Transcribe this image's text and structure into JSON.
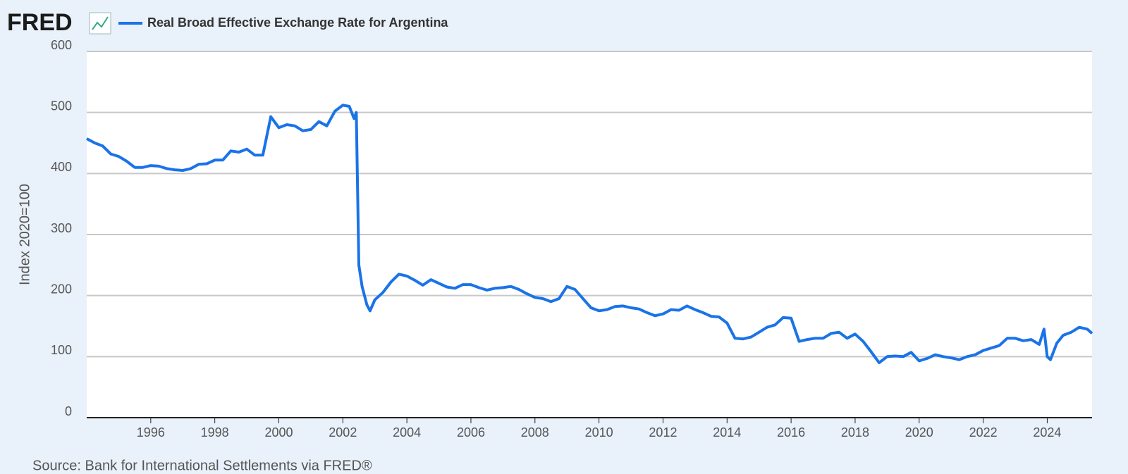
{
  "brand": "FRED",
  "source": "Source: Bank for International Settlements via FRED®",
  "chart_data": {
    "type": "line",
    "y_label": "Index 2020=100",
    "xlim": [
      1994,
      2025.4
    ],
    "xticks": [
      1996,
      1998,
      2000,
      2002,
      2004,
      2006,
      2008,
      2010,
      2012,
      2014,
      2016,
      2018,
      2020,
      2022,
      2024
    ],
    "ylim": [
      0,
      600
    ],
    "yticks": [
      0,
      100,
      200,
      300,
      400,
      500,
      600
    ],
    "grid": true,
    "x": [
      1994.0,
      1994.25,
      1994.5,
      1994.75,
      1995.0,
      1995.25,
      1995.5,
      1995.75,
      1996.0,
      1996.25,
      1996.5,
      1996.75,
      1997.0,
      1997.25,
      1997.5,
      1997.75,
      1998.0,
      1998.25,
      1998.5,
      1998.75,
      1999.0,
      1999.25,
      1999.5,
      1999.75,
      2000.0,
      2000.25,
      2000.5,
      2000.75,
      2001.0,
      2001.25,
      2001.5,
      2001.75,
      2002.0,
      2002.2,
      2002.35,
      2002.42,
      2002.5,
      2002.6,
      2002.75,
      2002.85,
      2003.0,
      2003.25,
      2003.5,
      2003.75,
      2004.0,
      2004.25,
      2004.5,
      2004.75,
      2005.0,
      2005.25,
      2005.5,
      2005.75,
      2006.0,
      2006.25,
      2006.5,
      2006.75,
      2007.0,
      2007.25,
      2007.5,
      2007.75,
      2008.0,
      2008.25,
      2008.5,
      2008.75,
      2009.0,
      2009.25,
      2009.5,
      2009.75,
      2010.0,
      2010.25,
      2010.5,
      2010.75,
      2011.0,
      2011.25,
      2011.5,
      2011.75,
      2012.0,
      2012.25,
      2012.5,
      2012.75,
      2013.0,
      2013.25,
      2013.5,
      2013.75,
      2014.0,
      2014.25,
      2014.5,
      2014.75,
      2015.0,
      2015.25,
      2015.5,
      2015.75,
      2016.0,
      2016.25,
      2016.5,
      2016.75,
      2017.0,
      2017.25,
      2017.5,
      2017.75,
      2018.0,
      2018.25,
      2018.5,
      2018.75,
      2019.0,
      2019.25,
      2019.5,
      2019.75,
      2020.0,
      2020.25,
      2020.5,
      2020.75,
      2021.0,
      2021.25,
      2021.5,
      2021.75,
      2022.0,
      2022.25,
      2022.5,
      2022.75,
      2023.0,
      2023.25,
      2023.5,
      2023.75,
      2023.9,
      2024.0,
      2024.1,
      2024.3,
      2024.5,
      2024.75,
      2025.0,
      2025.25,
      2025.4
    ],
    "series": [
      {
        "name": "Real Broad Effective Exchange Rate for Argentina",
        "color": "#1a73e8",
        "values": [
          457,
          450,
          445,
          432,
          428,
          420,
          410,
          410,
          413,
          412,
          408,
          406,
          405,
          408,
          415,
          416,
          422,
          422,
          437,
          435,
          440,
          430,
          430,
          493,
          475,
          480,
          478,
          470,
          472,
          485,
          478,
          502,
          512,
          510,
          490,
          500,
          250,
          215,
          185,
          175,
          193,
          205,
          222,
          235,
          232,
          225,
          217,
          226,
          220,
          214,
          212,
          218,
          218,
          213,
          209,
          212,
          213,
          215,
          210,
          203,
          197,
          195,
          190,
          195,
          215,
          210,
          195,
          180,
          175,
          177,
          182,
          183,
          180,
          178,
          172,
          167,
          170,
          177,
          176,
          183,
          177,
          172,
          166,
          165,
          155,
          130,
          129,
          132,
          140,
          148,
          152,
          164,
          163,
          125,
          128,
          130,
          130,
          138,
          140,
          130,
          137,
          125,
          108,
          90,
          100,
          101,
          100,
          107,
          93,
          97,
          103,
          100,
          98,
          95,
          100,
          103,
          110,
          114,
          118,
          130,
          130,
          126,
          128,
          120,
          145,
          100,
          95,
          122,
          135,
          140,
          148,
          145,
          138
        ]
      }
    ]
  }
}
